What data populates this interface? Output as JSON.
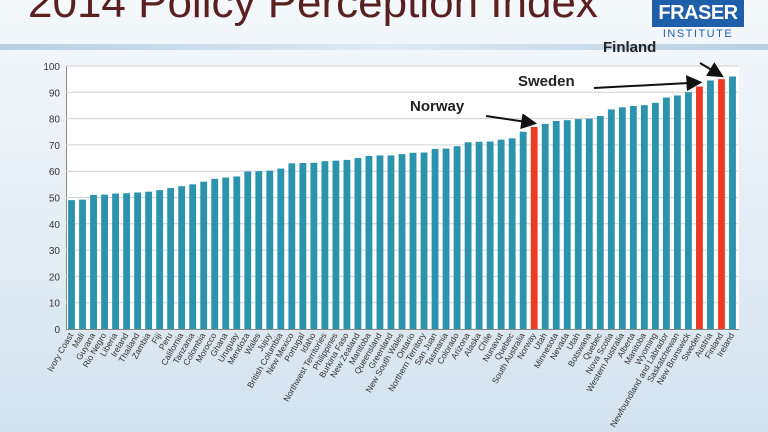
{
  "title": "2014 Policy Perception Index",
  "logo": {
    "main": "FRASER",
    "sub": "INSTITUTE"
  },
  "colors": {
    "bar": "#2b93ae",
    "highlight": "#ee3a24",
    "title": "#5a1f1f",
    "logo": "#1f5ea8"
  },
  "chart_data": {
    "type": "bar",
    "title": "2014 Policy Perception Index",
    "xlabel": "",
    "ylabel": "",
    "ylim": [
      0,
      100
    ],
    "yticks": [
      0,
      10,
      20,
      30,
      40,
      50,
      60,
      70,
      80,
      90,
      100
    ],
    "grid": true,
    "categories": [
      "Ivory Coast",
      "Mali",
      "Guyana",
      "Rio Negro",
      "Liberia",
      "Ireland",
      "Thailand",
      "Zambia",
      "Fiji",
      "Peru",
      "California",
      "Tanzania",
      "Colombia",
      "Morocco",
      "Ghana",
      "Uruguay",
      "Mendoza",
      "Wales",
      "Jujuy",
      "British Columbia",
      "New Mexico",
      "Portugal",
      "Idaho",
      "Northwest Territories",
      "Philippines",
      "Burkina Faso",
      "New Zealand",
      "Manitoba",
      "Queensland",
      "Greenland",
      "New South Wales",
      "Ontario",
      "Northern Territory",
      "San Juan",
      "Tasmania",
      "Colorado",
      "Arizona",
      "Alaska",
      "Chile",
      "Nunavut",
      "Quebec",
      "South Australia",
      "Norway",
      "Utah",
      "Minnesota",
      "Nevada",
      "Utah",
      "Botswana",
      "Quebec",
      "Nova Scotia",
      "Western Australia",
      "Alberta",
      "Manitoba",
      "Wyoming",
      "Newfoundland and Labrador",
      "Saskatchewan",
      "New Brunswick",
      "Sweden",
      "Austria",
      "Finland",
      "Ireland"
    ],
    "values": [
      49.0,
      49.2,
      51.0,
      51.1,
      51.5,
      51.6,
      51.9,
      52.2,
      52.8,
      53.6,
      54.3,
      55.0,
      56.0,
      57.1,
      57.6,
      58.0,
      59.9,
      60.0,
      60.2,
      61.0,
      63.0,
      63.1,
      63.2,
      63.8,
      64.0,
      64.3,
      65.0,
      65.8,
      66.0,
      66.0,
      66.5,
      67.0,
      67.1,
      68.5,
      68.6,
      69.5,
      71.0,
      71.2,
      71.3,
      72.0,
      72.5,
      75.0,
      76.8,
      78.0,
      79.1,
      79.4,
      79.8,
      80.0,
      81.0,
      83.5,
      84.3,
      84.8,
      85.1,
      86.0,
      88.0,
      88.8,
      90.0,
      92.2,
      94.5,
      95.0,
      96.0
    ],
    "highlighted": [
      "Norway",
      "Sweden",
      "Finland"
    ],
    "annotations": [
      {
        "text": "Norway",
        "target": "Norway"
      },
      {
        "text": "Sweden",
        "target": "Sweden"
      },
      {
        "text": "Finland",
        "target": "Finland"
      }
    ]
  }
}
